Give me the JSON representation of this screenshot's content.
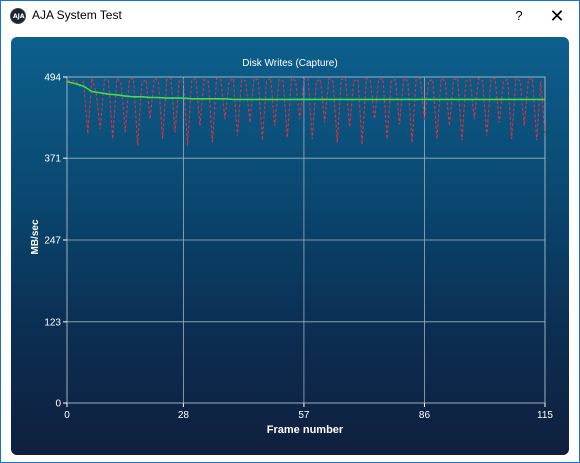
{
  "window": {
    "title": "AJA System Test",
    "help_label": "?",
    "close_label": "✕",
    "app_icon": "aja-logo-icon"
  },
  "colors": {
    "panel_top": "#0d5f8d",
    "panel_bottom": "#101f3d",
    "series_raw": "#e0303a",
    "series_avg": "#3ee04a",
    "grid": "#9fb0c0"
  },
  "chart_data": {
    "type": "line",
    "title": "Disk Writes (Capture)",
    "xlabel": "Frame number",
    "ylabel": "MB/sec",
    "xlim": [
      0,
      115
    ],
    "ylim": [
      0,
      494
    ],
    "xticks": [
      0,
      28,
      57,
      86,
      115
    ],
    "yticks": [
      0,
      123,
      247,
      371,
      494
    ],
    "grid": true,
    "series": [
      {
        "style": "dashed",
        "x": [
          0,
          1,
          2,
          3,
          4,
          5,
          6,
          7,
          8,
          9,
          10,
          11,
          12,
          13,
          14,
          15,
          16,
          17,
          18,
          19,
          20,
          21,
          22,
          23,
          24,
          25,
          26,
          27,
          28,
          29,
          30,
          31,
          32,
          33,
          34,
          35,
          36,
          37,
          38,
          39,
          40,
          41,
          42,
          43,
          44,
          45,
          46,
          47,
          48,
          49,
          50,
          51,
          52,
          53,
          54,
          55,
          56,
          57,
          58,
          59,
          60,
          61,
          62,
          63,
          64,
          65,
          66,
          67,
          68,
          69,
          70,
          71,
          72,
          73,
          74,
          75,
          76,
          77,
          78,
          79,
          80,
          81,
          82,
          83,
          84,
          85,
          86,
          87,
          88,
          89,
          90,
          91,
          92,
          93,
          94,
          95,
          96,
          97,
          98,
          99,
          100,
          101,
          102,
          103,
          104,
          105,
          106,
          107,
          108,
          109,
          110,
          111,
          112,
          113,
          114,
          115
        ],
        "values": [
          490,
          488,
          489,
          480,
          487,
          408,
          492,
          470,
          415,
          490,
          488,
          400,
          492,
          485,
          410,
          490,
          492,
          390,
          485,
          490,
          430,
          492,
          488,
          400,
          490,
          492,
          410,
          488,
          490,
          390,
          488,
          492,
          420,
          490,
          488,
          395,
          492,
          490,
          430,
          488,
          492,
          405,
          490,
          488,
          425,
          492,
          490,
          398,
          488,
          492,
          420,
          490,
          488,
          402,
          492,
          488,
          430,
          490,
          492,
          400,
          488,
          490,
          425,
          492,
          488,
          395,
          490,
          492,
          418,
          488,
          490,
          392,
          492,
          488,
          430,
          490,
          492,
          400,
          488,
          490,
          422,
          492,
          488,
          395,
          490,
          492,
          428,
          488,
          490,
          400,
          492,
          488,
          420,
          490,
          492,
          398,
          488,
          490,
          430,
          492,
          488,
          405,
          490,
          492,
          425,
          488,
          490,
          400,
          492,
          488,
          420,
          490,
          492,
          398,
          488,
          405
        ]
      },
      {
        "style": "solid",
        "x": [
          0,
          2,
          4,
          6,
          8,
          10,
          12,
          14,
          16,
          18,
          20,
          22,
          24,
          26,
          28,
          30,
          32,
          34,
          36,
          38,
          40,
          42,
          44,
          46,
          48,
          50,
          52,
          54,
          56,
          58,
          60,
          62,
          64,
          66,
          68,
          70,
          72,
          74,
          76,
          78,
          80,
          82,
          84,
          86,
          88,
          90,
          92,
          94,
          96,
          98,
          100,
          102,
          104,
          106,
          108,
          110,
          112,
          115
        ],
        "values": [
          487,
          484,
          480,
          472,
          470,
          468,
          467,
          465,
          464,
          464,
          463,
          463,
          462,
          462,
          462,
          461,
          461,
          461,
          461,
          461,
          460,
          460,
          460,
          460,
          460,
          460,
          460,
          460,
          460,
          460,
          460,
          460,
          460,
          460,
          460,
          460,
          460,
          460,
          460,
          460,
          460,
          460,
          460,
          460,
          460,
          460,
          460,
          460,
          460,
          460,
          460,
          460,
          460,
          460,
          460,
          460,
          460,
          460
        ]
      }
    ]
  }
}
